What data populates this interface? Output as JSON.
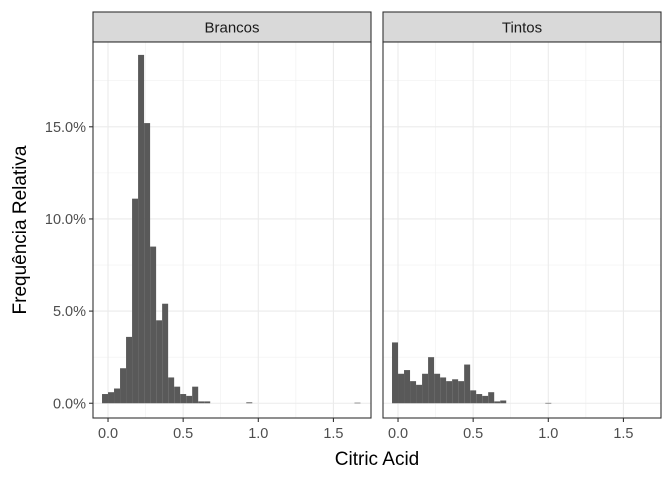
{
  "chart_data": {
    "type": "bar",
    "xlabel": "Citric Acid",
    "ylabel": "Frequência Relativa",
    "xlim": [
      -0.1,
      1.75
    ],
    "ylim": [
      -0.008,
      0.196
    ],
    "xticks": [
      0.0,
      0.5,
      1.0,
      1.5
    ],
    "xtick_labels": [
      "0.0",
      "0.5",
      "1.0",
      "1.5"
    ],
    "yticks": [
      0.0,
      0.05,
      0.1,
      0.15
    ],
    "ytick_labels": [
      "0.0%",
      "5.0%",
      "10.0%",
      "15.0%"
    ],
    "bin_width": 0.04,
    "grid": true,
    "bar_color": "#595959",
    "panels": [
      {
        "name": "Brancos",
        "bins": [
          {
            "x": -0.02,
            "y": 0.005
          },
          {
            "x": 0.02,
            "y": 0.006
          },
          {
            "x": 0.06,
            "y": 0.008
          },
          {
            "x": 0.1,
            "y": 0.019
          },
          {
            "x": 0.14,
            "y": 0.036
          },
          {
            "x": 0.18,
            "y": 0.111
          },
          {
            "x": 0.22,
            "y": 0.189
          },
          {
            "x": 0.26,
            "y": 0.152
          },
          {
            "x": 0.3,
            "y": 0.085
          },
          {
            "x": 0.34,
            "y": 0.045
          },
          {
            "x": 0.38,
            "y": 0.054
          },
          {
            "x": 0.42,
            "y": 0.014
          },
          {
            "x": 0.46,
            "y": 0.009
          },
          {
            "x": 0.5,
            "y": 0.005
          },
          {
            "x": 0.54,
            "y": 0.004
          },
          {
            "x": 0.58,
            "y": 0.009
          },
          {
            "x": 0.62,
            "y": 0.001
          },
          {
            "x": 0.66,
            "y": 0.001
          },
          {
            "x": 0.7,
            "y": 0.0
          },
          {
            "x": 0.74,
            "y": 0.0
          },
          {
            "x": 0.78,
            "y": 0.0
          },
          {
            "x": 0.82,
            "y": 0.0
          },
          {
            "x": 0.86,
            "y": 0.0
          },
          {
            "x": 0.9,
            "y": 0.0
          },
          {
            "x": 0.94,
            "y": 0.0005
          },
          {
            "x": 0.98,
            "y": 0.0
          },
          {
            "x": 1.66,
            "y": 0.0003
          }
        ]
      },
      {
        "name": "Tintos",
        "bins": [
          {
            "x": -0.02,
            "y": 0.033
          },
          {
            "x": 0.02,
            "y": 0.016
          },
          {
            "x": 0.06,
            "y": 0.018
          },
          {
            "x": 0.1,
            "y": 0.012
          },
          {
            "x": 0.14,
            "y": 0.01
          },
          {
            "x": 0.18,
            "y": 0.016
          },
          {
            "x": 0.22,
            "y": 0.025
          },
          {
            "x": 0.26,
            "y": 0.016
          },
          {
            "x": 0.3,
            "y": 0.014
          },
          {
            "x": 0.34,
            "y": 0.012
          },
          {
            "x": 0.38,
            "y": 0.013
          },
          {
            "x": 0.42,
            "y": 0.012
          },
          {
            "x": 0.46,
            "y": 0.021
          },
          {
            "x": 0.5,
            "y": 0.007
          },
          {
            "x": 0.54,
            "y": 0.005
          },
          {
            "x": 0.58,
            "y": 0.004
          },
          {
            "x": 0.62,
            "y": 0.006
          },
          {
            "x": 0.66,
            "y": 0.001
          },
          {
            "x": 0.7,
            "y": 0.0015
          },
          {
            "x": 0.74,
            "y": 0.0
          },
          {
            "x": 1.0,
            "y": 0.0002
          }
        ]
      }
    ]
  }
}
